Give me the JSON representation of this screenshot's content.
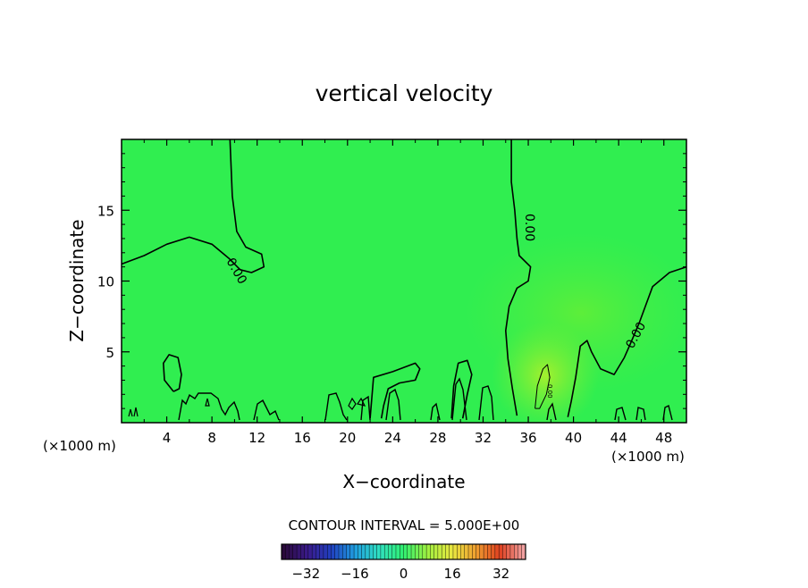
{
  "chart_data": {
    "type": "heatmap",
    "title": "vertical velocity",
    "xlabel": "X−coordinate",
    "ylabel": "Z−coordinate",
    "x_unit": "(×1000 m)",
    "xlim": [
      0,
      50
    ],
    "ylim": [
      0,
      20
    ],
    "x_ticks": [
      4,
      8,
      12,
      16,
      20,
      24,
      28,
      32,
      36,
      40,
      44,
      48
    ],
    "y_ticks": [
      5,
      10,
      15
    ],
    "field_value_dominant": 0,
    "field_maximum_region": {
      "x": 37,
      "z": 2.5,
      "approx_value": 5
    },
    "contour_interval_label": "CONTOUR INTERVAL = 5.000E+00",
    "contour_levels": [
      0,
      5
    ],
    "contour_labels": [
      "0.00",
      "0.00",
      "0.00",
      "0.00"
    ],
    "contours": [
      {
        "level": 0,
        "points": [
          [
            0,
            11.2
          ],
          [
            2,
            11.8
          ],
          [
            4,
            12.6
          ],
          [
            6,
            13.1
          ],
          [
            8,
            12.6
          ],
          [
            9.5,
            11.6
          ],
          [
            10.5,
            10.8
          ],
          [
            11.5,
            10.6
          ],
          [
            12.6,
            11.0
          ],
          [
            12.4,
            11.9
          ],
          [
            11.0,
            12.4
          ],
          [
            10.2,
            13.5
          ],
          [
            9.8,
            16
          ],
          [
            9.6,
            20
          ]
        ]
      },
      {
        "level": 0,
        "points": [
          [
            34.5,
            20
          ],
          [
            34.5,
            17
          ],
          [
            34.8,
            15
          ],
          [
            35.0,
            13
          ],
          [
            35.2,
            11.8
          ],
          [
            36.2,
            11.0
          ],
          [
            36.0,
            10.0
          ],
          [
            35.0,
            9.5
          ],
          [
            34.3,
            8.2
          ],
          [
            34.0,
            6.5
          ],
          [
            34.2,
            4.5
          ],
          [
            34.6,
            2.4
          ],
          [
            35.0,
            0.5
          ]
        ]
      },
      {
        "level": 0,
        "points": [
          [
            50,
            11.0
          ],
          [
            48.5,
            10.6
          ],
          [
            47,
            9.6
          ],
          [
            45.8,
            7.0
          ],
          [
            45,
            5.5
          ],
          [
            44.5,
            4.6
          ],
          [
            43.6,
            3.4
          ],
          [
            42.4,
            3.8
          ],
          [
            41.6,
            5.0
          ],
          [
            41.2,
            5.8
          ],
          [
            40.6,
            5.4
          ],
          [
            40.2,
            3.2
          ],
          [
            39.8,
            1.5
          ],
          [
            39.5,
            0.4
          ]
        ]
      },
      {
        "level": 0,
        "points": [
          [
            4.6,
            2.2
          ],
          [
            3.8,
            3.0
          ],
          [
            3.7,
            4.2
          ],
          [
            4.2,
            4.8
          ],
          [
            5.0,
            4.6
          ],
          [
            5.3,
            3.4
          ],
          [
            5.1,
            2.4
          ],
          [
            4.6,
            2.2
          ]
        ]
      },
      {
        "level": 0,
        "points": [
          [
            22,
            0.3
          ],
          [
            22.3,
            3.2
          ],
          [
            24,
            3.6
          ],
          [
            26,
            4.2
          ],
          [
            26.4,
            3.8
          ],
          [
            26.0,
            3.0
          ],
          [
            24.6,
            2.8
          ],
          [
            23.6,
            2.4
          ],
          [
            23.2,
            1.2
          ],
          [
            23.0,
            0.3
          ]
        ]
      },
      {
        "level": 0,
        "points": [
          [
            29.2,
            0.3
          ],
          [
            29.4,
            2.6
          ],
          [
            29.8,
            4.2
          ],
          [
            30.6,
            4.4
          ],
          [
            31.0,
            3.4
          ],
          [
            30.6,
            2.0
          ],
          [
            30.2,
            0.3
          ]
        ]
      },
      {
        "level": 5,
        "points": [
          [
            36.6,
            1.0
          ],
          [
            36.8,
            2.6
          ],
          [
            37.3,
            3.8
          ],
          [
            37.7,
            4.1
          ],
          [
            37.9,
            3.2
          ],
          [
            37.6,
            2.0
          ],
          [
            37.0,
            1.0
          ],
          [
            36.6,
            1.0
          ]
        ]
      }
    ],
    "colorbar": {
      "tick_labels": [
        "−32",
        "−16",
        "0",
        "16",
        "32"
      ],
      "tick_values": [
        -32,
        -16,
        0,
        16,
        32
      ],
      "range": [
        -40,
        40
      ],
      "colors": [
        "#2a0a3a",
        "#3a1a8a",
        "#2040c0",
        "#20a0e0",
        "#30e0c0",
        "#30f070",
        "#a0f040",
        "#e8e840",
        "#f0a030",
        "#e04020",
        "#f0a0a0"
      ]
    },
    "colors": {
      "background_field": "#30ee50",
      "warm_region": "#8cf02a",
      "contour": "#000000"
    }
  }
}
